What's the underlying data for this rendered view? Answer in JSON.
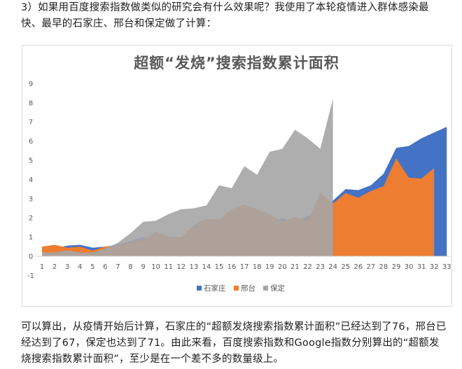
{
  "intro_text": "3）如果用百度搜索指数做类似的研究会有什么效果呢？我使用了本轮疫情进入群体感染最快、最早的石家庄、邢台和保定做了计算：",
  "outro_text": "可以算出，从疫情开始后计算，石家庄的“超额发烧搜索指数累计面积”已经达到了76，邢台已经达到了67，保定也达到了71。由此来看，百度搜索指数和Google指数分别算出的“超额发烧搜索指数累计面积”，至少是在一个差不多的数量级上。",
  "chart_data": {
    "type": "area",
    "title": "超额“发烧”搜索指数累计面积",
    "xlabel": "",
    "ylabel": "",
    "x": [
      1,
      2,
      3,
      4,
      5,
      6,
      7,
      8,
      9,
      10,
      11,
      12,
      13,
      14,
      15,
      16,
      17,
      18,
      19,
      20,
      21,
      22,
      23,
      24,
      25,
      26,
      27,
      28,
      29,
      30,
      31,
      32,
      33
    ],
    "ylim": [
      -1,
      9
    ],
    "yticks": [
      -1,
      0,
      1,
      2,
      3,
      4,
      5,
      6,
      7,
      8,
      9
    ],
    "grid": false,
    "legend_position": "bottom",
    "series": [
      {
        "name": "石家庄",
        "color": "#4472C4",
        "values": [
          0.3,
          0.4,
          0.55,
          0.6,
          0.45,
          0.5,
          0.6,
          0.8,
          1.0,
          0.7,
          0.8,
          0.9,
          1.0,
          1.2,
          1.3,
          1.5,
          1.7,
          1.8,
          1.7,
          2.0,
          1.8,
          2.1,
          2.2,
          2.9,
          3.5,
          3.45,
          3.7,
          4.3,
          5.65,
          5.75,
          6.15,
          6.45,
          6.75
        ]
      },
      {
        "name": "邢台",
        "color": "#ED7D31",
        "values": [
          0.5,
          0.6,
          0.45,
          0.5,
          0.3,
          0.5,
          0.55,
          0.75,
          0.85,
          1.3,
          1.0,
          1.0,
          1.6,
          1.95,
          1.9,
          2.45,
          2.7,
          2.45,
          2.2,
          1.8,
          2.05,
          1.85,
          3.3,
          2.75,
          3.3,
          3.05,
          3.4,
          3.65,
          5.1,
          4.1,
          4.05,
          4.6,
          null
        ]
      },
      {
        "name": "保定",
        "color": "#A5A5A5",
        "values": [
          0.2,
          0.2,
          0.3,
          0.2,
          0.2,
          0.4,
          0.7,
          1.2,
          1.8,
          1.85,
          2.2,
          2.45,
          2.5,
          2.65,
          3.7,
          3.55,
          4.7,
          4.25,
          5.45,
          5.6,
          6.6,
          6.15,
          5.6,
          8.2,
          null,
          null,
          null,
          null,
          null,
          null,
          null,
          null,
          null
        ]
      }
    ]
  }
}
